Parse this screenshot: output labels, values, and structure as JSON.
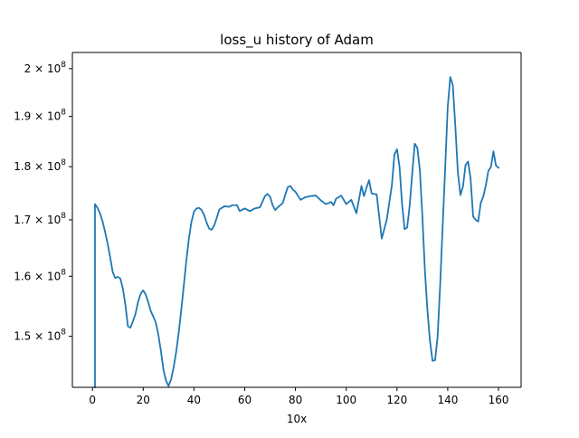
{
  "chart_data": {
    "type": "line",
    "title": "loss_u history of Adam",
    "xlabel": "10x",
    "ylabel": "",
    "yscale": "log",
    "xlim": [
      -7.9,
      168.9
    ],
    "ylim": [
      142000000,
      203500000
    ],
    "grid": false,
    "legend": "none",
    "x_ticks": [
      {
        "value": 0,
        "label": "0"
      },
      {
        "value": 20,
        "label": "20"
      },
      {
        "value": 40,
        "label": "40"
      },
      {
        "value": 60,
        "label": "60"
      },
      {
        "value": 80,
        "label": "80"
      },
      {
        "value": 100,
        "label": "100"
      },
      {
        "value": 120,
        "label": "120"
      },
      {
        "value": 140,
        "label": "140"
      },
      {
        "value": 160,
        "label": "160"
      }
    ],
    "y_ticks": [
      {
        "value": 150000000,
        "mantissa": "1.5",
        "base": "10",
        "exp": "8"
      },
      {
        "value": 160000000,
        "mantissa": "1.6",
        "base": "10",
        "exp": "8"
      },
      {
        "value": 170000000,
        "mantissa": "1.7",
        "base": "10",
        "exp": "8"
      },
      {
        "value": 180000000,
        "mantissa": "1.8",
        "base": "10",
        "exp": "8"
      },
      {
        "value": 190000000,
        "mantissa": "1.9",
        "base": "10",
        "exp": "8"
      },
      {
        "value": 200000000,
        "mantissa": "2",
        "base": "10",
        "exp": "8"
      }
    ],
    "series": [
      {
        "color": "#1f77b4",
        "x": [
          1,
          1,
          2,
          3,
          4,
          5,
          6,
          7,
          8,
          9,
          10,
          11,
          12,
          13,
          14,
          15,
          16,
          17,
          18,
          19,
          20,
          21,
          22,
          23,
          24,
          25,
          26,
          27,
          28,
          29,
          30,
          31,
          32,
          33,
          34,
          35,
          36,
          37,
          38,
          39,
          40,
          41,
          42,
          43,
          44,
          45,
          46,
          47,
          48,
          49,
          50,
          52,
          54,
          55,
          57,
          58,
          60,
          62,
          64,
          66,
          68,
          69,
          70,
          71,
          72,
          73,
          75,
          76,
          77,
          78,
          79,
          80,
          82,
          84,
          86,
          88,
          90,
          92,
          94,
          95,
          96,
          98,
          100,
          102,
          104,
          105,
          106,
          107,
          108,
          109,
          110,
          112,
          114,
          116,
          118,
          119,
          120,
          121,
          122,
          123,
          124,
          125,
          126,
          127,
          128,
          129,
          130,
          131,
          132,
          133,
          134,
          135,
          136,
          137,
          138,
          139,
          140,
          141,
          142,
          143,
          144,
          145,
          146,
          147,
          148,
          149,
          150,
          151,
          152,
          153,
          154,
          155,
          156,
          157,
          158,
          159,
          160
        ],
        "values": [
          142000000,
          172900000,
          172200000,
          171200000,
          169700000,
          167800000,
          165700000,
          163300000,
          160700000,
          159700000,
          159900000,
          159600000,
          157900000,
          155100000,
          151600000,
          151400000,
          152500000,
          153700000,
          155700000,
          157000000,
          157600000,
          156900000,
          155600000,
          154100000,
          153200000,
          152200000,
          150200000,
          147600000,
          144700000,
          143000000,
          142200000,
          143200000,
          145100000,
          147500000,
          150600000,
          154300000,
          158400000,
          162700000,
          166600000,
          169600000,
          171500000,
          172100000,
          172200000,
          171800000,
          170900000,
          169500000,
          168400000,
          168200000,
          169000000,
          170400000,
          171900000,
          172500000,
          172400000,
          172700000,
          172700000,
          171600000,
          172100000,
          171600000,
          172100000,
          172300000,
          174400000,
          174800000,
          174300000,
          172700000,
          171800000,
          172300000,
          173100000,
          174700000,
          176100000,
          176300000,
          175600000,
          175200000,
          173700000,
          174200000,
          174400000,
          174500000,
          173600000,
          172900000,
          173300000,
          172700000,
          173900000,
          174500000,
          172900000,
          173700000,
          171200000,
          173700000,
          176300000,
          174400000,
          176000000,
          177400000,
          174900000,
          174700000,
          166600000,
          170100000,
          176500000,
          182400000,
          183400000,
          180000000,
          172900000,
          168300000,
          168600000,
          172600000,
          178700000,
          184500000,
          183700000,
          179400000,
          170700000,
          161000000,
          154200000,
          149200000,
          146100000,
          146200000,
          149900000,
          158400000,
          168900000,
          179900000,
          192000000,
          198200000,
          196500000,
          187900000,
          178800000,
          174600000,
          176200000,
          180300000,
          181000000,
          177700000,
          170600000,
          170000000,
          169700000,
          173100000,
          174300000,
          176400000,
          179200000,
          179900000,
          183000000,
          180200000,
          179800000
        ]
      }
    ]
  }
}
